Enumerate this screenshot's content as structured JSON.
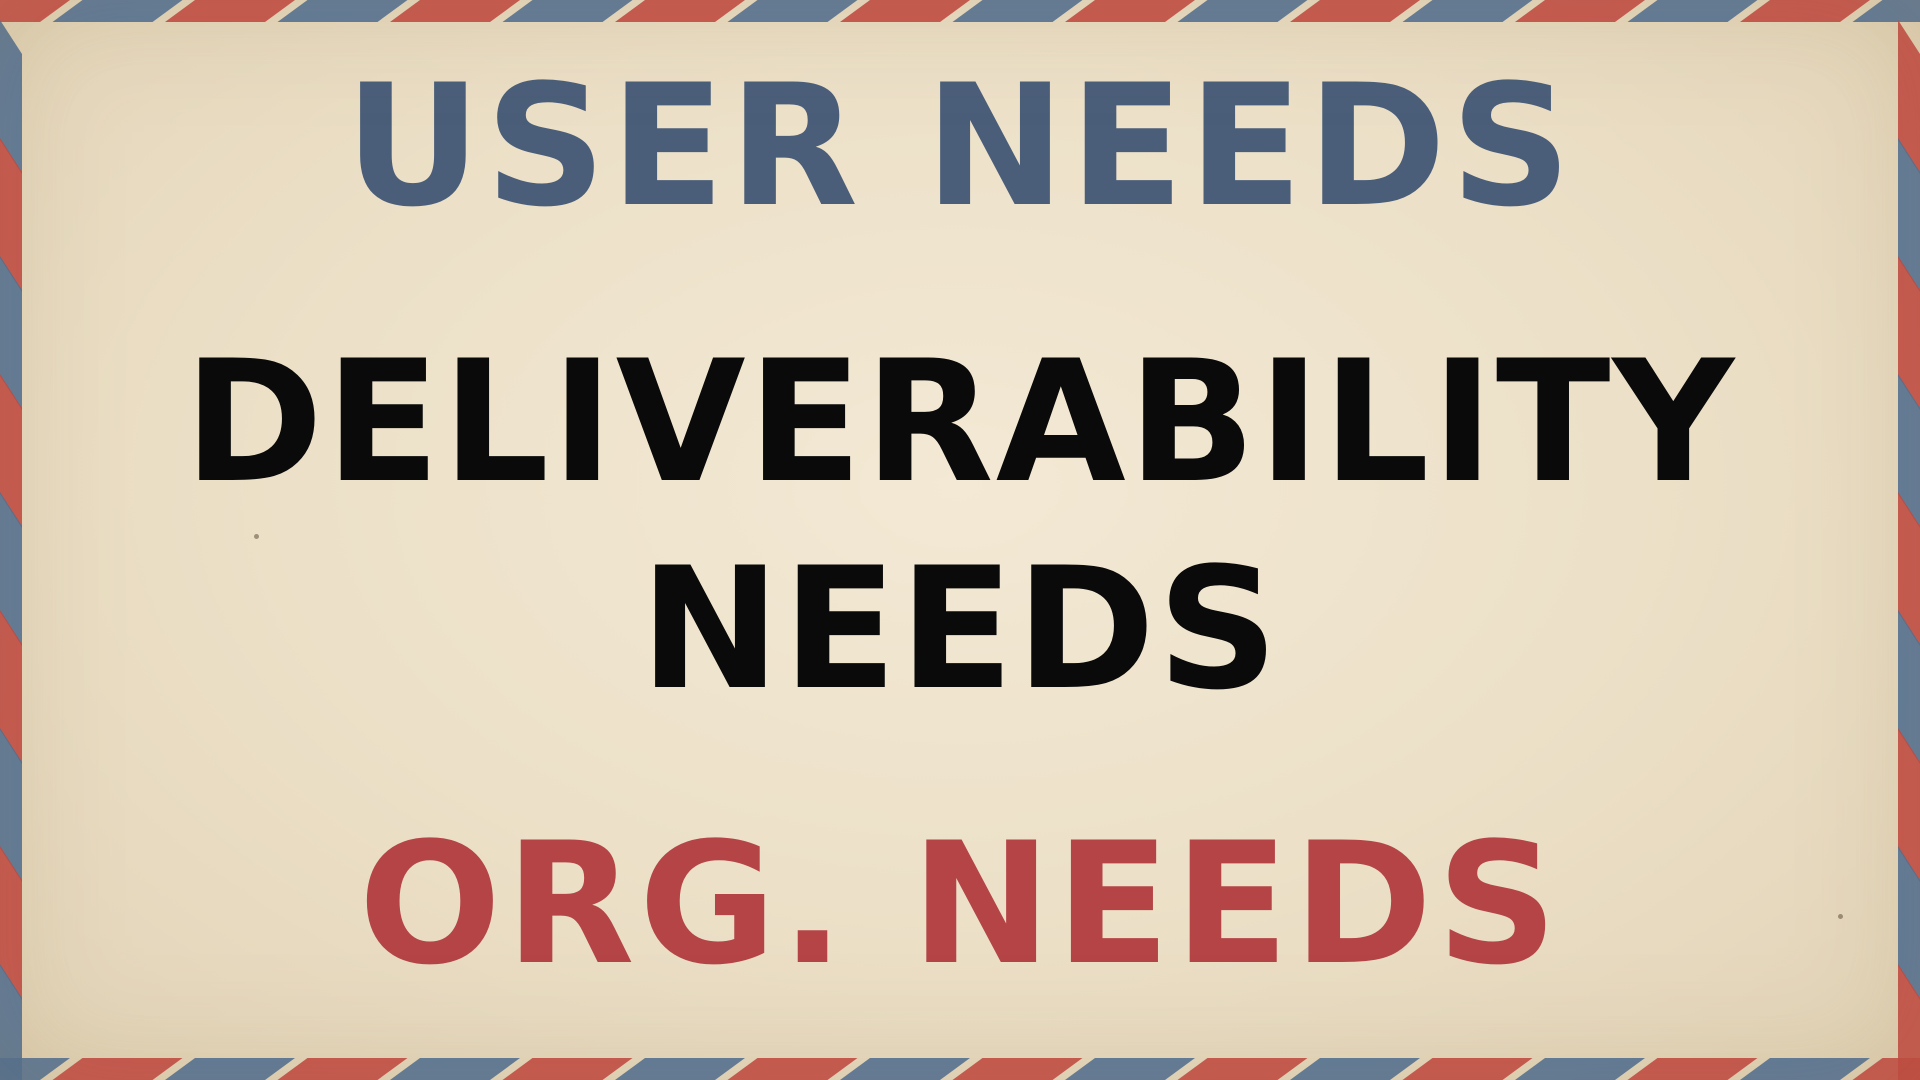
{
  "slide": {
    "line_top": "USER NEEDS",
    "line_middle_1": "DELIVERABILITY",
    "line_middle_2": "NEEDS",
    "line_bottom": "ORG. NEEDS"
  },
  "colors": {
    "paper": "#eadfc7",
    "stripe_blue": "#4a6c95",
    "stripe_red": "#c3433f",
    "top_text": "#4a5e7a",
    "middle_text": "#0a0a0a",
    "bottom_text": "#b44446"
  }
}
